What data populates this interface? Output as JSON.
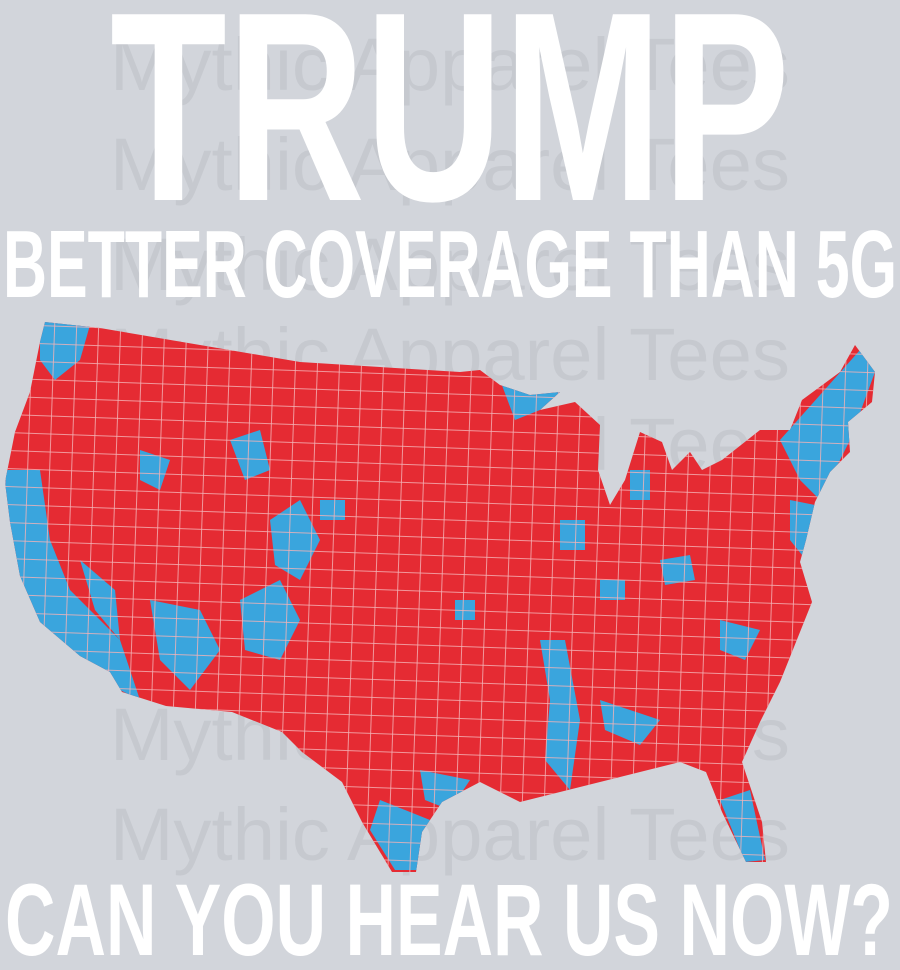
{
  "headline": "TRUMP",
  "tagline": "BETTER COVERAGE THAN 5G",
  "bottom_line": "CAN YOU HEAR US NOW?",
  "watermark": "Mythic Apparel Tees"
}
